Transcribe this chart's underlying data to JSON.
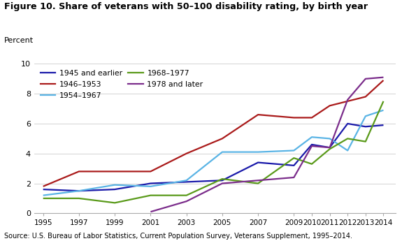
{
  "title": "Figure 10. Share of veterans with 50–100 disability rating, by birth year",
  "ylabel": "Percent",
  "source": "Source: U.S. Bureau of Labor Statistics, Current Population Survey, Veterans Supplement, 1995–2014.",
  "ylim": [
    0,
    10
  ],
  "yticks": [
    0,
    2,
    4,
    6,
    8,
    10
  ],
  "series": [
    {
      "label": "1945 and earlier",
      "color": "#1a1aaa",
      "years": [
        1995,
        1997,
        1999,
        2001,
        2003,
        2005,
        2007,
        2009,
        2010,
        2011,
        2012,
        2013,
        2014
      ],
      "values": [
        1.6,
        1.5,
        1.6,
        2.0,
        2.1,
        2.2,
        3.4,
        3.2,
        4.6,
        4.4,
        6.0,
        5.8,
        5.9
      ]
    },
    {
      "label": "1946–1953",
      "color": "#aa1a1a",
      "years": [
        1995,
        1997,
        1999,
        2001,
        2003,
        2005,
        2007,
        2009,
        2010,
        2011,
        2012,
        2013,
        2014
      ],
      "values": [
        1.8,
        2.8,
        2.8,
        2.8,
        4.0,
        5.0,
        6.6,
        6.4,
        6.4,
        7.2,
        7.5,
        7.8,
        8.9
      ]
    },
    {
      "label": "1954–1967",
      "color": "#5ab4e5",
      "years": [
        1995,
        1997,
        1999,
        2001,
        2003,
        2005,
        2007,
        2009,
        2010,
        2011,
        2012,
        2013,
        2014
      ],
      "values": [
        1.2,
        1.5,
        1.9,
        1.8,
        2.2,
        4.1,
        4.1,
        4.2,
        5.1,
        5.0,
        4.2,
        6.5,
        6.9
      ]
    },
    {
      "label": "1968–1977",
      "color": "#5a9a1a",
      "years": [
        1995,
        1997,
        1999,
        2001,
        2003,
        2005,
        2007,
        2009,
        2010,
        2011,
        2012,
        2013,
        2014
      ],
      "values": [
        1.0,
        1.0,
        0.7,
        1.2,
        1.2,
        2.3,
        2.0,
        3.7,
        3.3,
        4.3,
        5.0,
        4.8,
        7.5
      ]
    },
    {
      "label": "1978 and later",
      "color": "#7b2d8b",
      "years": [
        2001,
        2003,
        2005,
        2007,
        2009,
        2010,
        2011,
        2012,
        2013,
        2014
      ],
      "values": [
        0.1,
        0.8,
        2.0,
        2.2,
        2.4,
        4.5,
        4.4,
        7.6,
        9.0,
        9.1
      ]
    }
  ],
  "xticks": [
    1995,
    1997,
    1999,
    2001,
    2003,
    2005,
    2007,
    2009,
    2010,
    2011,
    2012,
    2013,
    2014
  ],
  "background_color": "#ffffff",
  "grid_color": "#cccccc"
}
